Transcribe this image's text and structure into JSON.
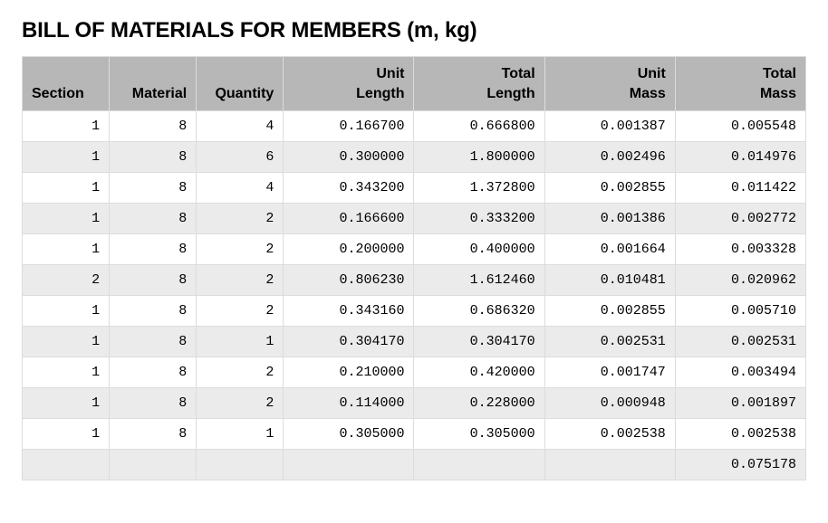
{
  "title": "BILL OF MATERIALS FOR MEMBERS (m, kg)",
  "table": {
    "columns": [
      {
        "key": "section",
        "label": "Section",
        "class": "c-section"
      },
      {
        "key": "material",
        "label": "Material",
        "class": "c-material"
      },
      {
        "key": "quantity",
        "label": "Quantity",
        "class": "c-quantity"
      },
      {
        "key": "unit_length",
        "label": "Unit Length",
        "class": "c-ul"
      },
      {
        "key": "total_length",
        "label": "Total Length",
        "class": "c-tl"
      },
      {
        "key": "unit_mass",
        "label": "Unit Mass",
        "class": "c-um"
      },
      {
        "key": "total_mass",
        "label": "Total Mass",
        "class": "c-tm"
      }
    ],
    "rows": [
      {
        "section": "1",
        "material": "8",
        "quantity": "4",
        "unit_length": "0.166700",
        "total_length": "0.666800",
        "unit_mass": "0.001387",
        "total_mass": "0.005548"
      },
      {
        "section": "1",
        "material": "8",
        "quantity": "6",
        "unit_length": "0.300000",
        "total_length": "1.800000",
        "unit_mass": "0.002496",
        "total_mass": "0.014976"
      },
      {
        "section": "1",
        "material": "8",
        "quantity": "4",
        "unit_length": "0.343200",
        "total_length": "1.372800",
        "unit_mass": "0.002855",
        "total_mass": "0.011422"
      },
      {
        "section": "1",
        "material": "8",
        "quantity": "2",
        "unit_length": "0.166600",
        "total_length": "0.333200",
        "unit_mass": "0.001386",
        "total_mass": "0.002772"
      },
      {
        "section": "1",
        "material": "8",
        "quantity": "2",
        "unit_length": "0.200000",
        "total_length": "0.400000",
        "unit_mass": "0.001664",
        "total_mass": "0.003328"
      },
      {
        "section": "2",
        "material": "8",
        "quantity": "2",
        "unit_length": "0.806230",
        "total_length": "1.612460",
        "unit_mass": "0.010481",
        "total_mass": "0.020962"
      },
      {
        "section": "1",
        "material": "8",
        "quantity": "2",
        "unit_length": "0.343160",
        "total_length": "0.686320",
        "unit_mass": "0.002855",
        "total_mass": "0.005710"
      },
      {
        "section": "1",
        "material": "8",
        "quantity": "1",
        "unit_length": "0.304170",
        "total_length": "0.304170",
        "unit_mass": "0.002531",
        "total_mass": "0.002531"
      },
      {
        "section": "1",
        "material": "8",
        "quantity": "2",
        "unit_length": "0.210000",
        "total_length": "0.420000",
        "unit_mass": "0.001747",
        "total_mass": "0.003494"
      },
      {
        "section": "1",
        "material": "8",
        "quantity": "2",
        "unit_length": "0.114000",
        "total_length": "0.228000",
        "unit_mass": "0.000948",
        "total_mass": "0.001897"
      },
      {
        "section": "1",
        "material": "8",
        "quantity": "1",
        "unit_length": "0.305000",
        "total_length": "0.305000",
        "unit_mass": "0.002538",
        "total_mass": "0.002538"
      }
    ],
    "footer_total_mass": "0.075178",
    "styles": {
      "header_bg": "#b7b7b7",
      "row_odd_bg": "#ffffff",
      "row_even_bg": "#ebebeb",
      "border_color": "#dcdcdc",
      "title_fontsize": 24,
      "header_fontsize": 16,
      "cell_fontsize": 15,
      "cell_font_family": "monospace"
    }
  }
}
